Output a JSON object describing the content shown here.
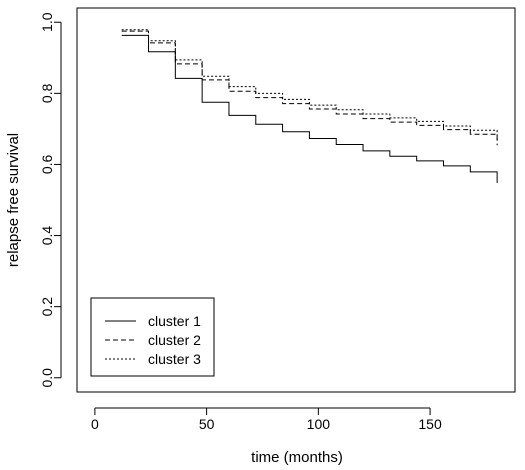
{
  "chart_data": {
    "type": "line",
    "step": true,
    "xlabel": "time (months)",
    "ylabel": "relapse free survival",
    "xlim": [
      -8,
      188
    ],
    "ylim": [
      -0.04,
      1.04
    ],
    "xticks": [
      0,
      50,
      100,
      150
    ],
    "yticks": [
      0.0,
      0.2,
      0.4,
      0.6,
      0.8,
      1.0
    ],
    "ytick_labels": [
      "0.0",
      "0.2",
      "0.4",
      "0.6",
      "0.8",
      "1.0"
    ],
    "legend_position": "bottom-left",
    "series": [
      {
        "name": "cluster 1",
        "line_style": "solid",
        "x": [
          12,
          24,
          36,
          48,
          60,
          72,
          84,
          96,
          108,
          120,
          132,
          144,
          156,
          168,
          180
        ],
        "y": [
          0.963,
          0.917,
          0.842,
          0.775,
          0.738,
          0.713,
          0.692,
          0.673,
          0.656,
          0.638,
          0.623,
          0.61,
          0.596,
          0.579,
          0.565
        ]
      },
      {
        "name": "cluster 2",
        "line_style": "dashed",
        "x": [
          12,
          24,
          36,
          48,
          60,
          72,
          84,
          96,
          108,
          120,
          132,
          144,
          156,
          168,
          180
        ],
        "y": [
          0.975,
          0.942,
          0.883,
          0.838,
          0.806,
          0.788,
          0.771,
          0.756,
          0.742,
          0.729,
          0.719,
          0.71,
          0.698,
          0.685,
          0.671
        ]
      },
      {
        "name": "cluster 3",
        "line_style": "dotted",
        "x": [
          12,
          24,
          36,
          48,
          60,
          72,
          84,
          96,
          108,
          120,
          132,
          144,
          156,
          168,
          180
        ],
        "y": [
          0.979,
          0.948,
          0.894,
          0.848,
          0.819,
          0.8,
          0.783,
          0.767,
          0.754,
          0.742,
          0.731,
          0.721,
          0.708,
          0.696,
          0.683
        ]
      }
    ]
  }
}
